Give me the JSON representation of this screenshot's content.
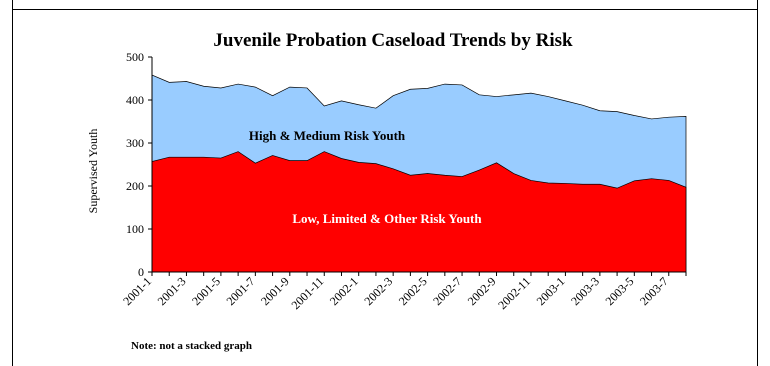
{
  "chart_data": {
    "type": "area",
    "title": "Juvenile Probation Caseload Trends by Risk",
    "ylabel": "Supervised Youth",
    "xlabel": "",
    "ylim": [
      0,
      500
    ],
    "yticks": [
      0,
      100,
      200,
      300,
      400,
      500
    ],
    "grid": false,
    "x": [
      "2001-1",
      "2001-2",
      "2001-3",
      "2001-4",
      "2001-5",
      "2001-6",
      "2001-7",
      "2001-8",
      "2001-9",
      "2001-10",
      "2001-11",
      "2001-12",
      "2002-1",
      "2002-2",
      "2002-3",
      "2002-4",
      "2002-5",
      "2002-6",
      "2002-7",
      "2002-8",
      "2002-9",
      "2002-10",
      "2002-11",
      "2002-12",
      "2003-1",
      "2003-2",
      "2003-3",
      "2003-4",
      "2003-5",
      "2003-6",
      "2003-7",
      "2003-8"
    ],
    "xtick_labels": [
      "2001-1",
      "2001-3",
      "2001-5",
      "2001-7",
      "2001-9",
      "2001-11",
      "2002-1",
      "2002-3",
      "2002-5",
      "2002-7",
      "2002-9",
      "2002-11",
      "2003-1",
      "2003-3",
      "2003-5",
      "2003-7"
    ],
    "series": [
      {
        "values": [
          458,
          441,
          443,
          432,
          428,
          437,
          430,
          410,
          430,
          428,
          386,
          398,
          389,
          381,
          410,
          425,
          427,
          437,
          435,
          412,
          408,
          412,
          416,
          408,
          398,
          388,
          375,
          373,
          364,
          356,
          360,
          362
        ],
        "color": "#99ccff",
        "label": "High & Medium Risk Youth"
      },
      {
        "values": [
          257,
          267,
          267,
          267,
          265,
          280,
          253,
          271,
          259,
          259,
          280,
          264,
          255,
          252,
          240,
          225,
          229,
          225,
          222,
          237,
          254,
          229,
          213,
          207,
          206,
          204,
          204,
          195,
          212,
          217,
          213,
          197
        ],
        "color": "#ff0000",
        "label": "Low, Limited & Other Risk Youth"
      }
    ],
    "note": "Note: not a stacked graph"
  }
}
